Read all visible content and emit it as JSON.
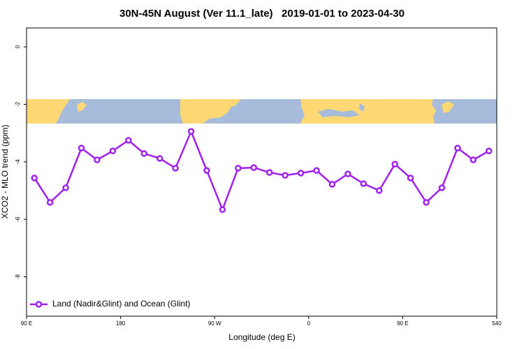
{
  "chart_data": {
    "type": "line",
    "title": "30N-45N August (Ver 11.1_late)   2019-01-01 to 2023-04-30",
    "x_label": "Longitude (deg E)",
    "y_label": "XCO2 - MLO trend (ppm)",
    "x": [
      97.5,
      112.5,
      127.5,
      142.5,
      157.5,
      172.5,
      187.5,
      202.5,
      217.5,
      232.5,
      247.5,
      262.5,
      277.5,
      292.5,
      307.5,
      322.5,
      337.5,
      352.5,
      367.5,
      382.5,
      397.5,
      412.5,
      427.5,
      442.5,
      457.5,
      472.5,
      487.5,
      502.5,
      517.5,
      532.5
    ],
    "series": [
      {
        "name": "Land (Nadir&Glint) and Ocean (Glint)",
        "color": "#a020f0",
        "values": [
          -4.56,
          -5.41,
          -4.9,
          -3.52,
          -3.93,
          -3.62,
          -3.25,
          -3.71,
          -3.88,
          -4.22,
          -2.94,
          -4.3,
          -5.66,
          -4.22,
          -4.2,
          -4.37,
          -4.47,
          -4.39,
          -4.3,
          -4.78,
          -4.42,
          -4.76,
          -5.0,
          -4.08,
          -4.56,
          -5.41,
          -4.9,
          -3.52,
          -3.93,
          -3.62
        ]
      }
    ],
    "xlim": [
      90,
      540
    ],
    "xticks": [
      {
        "value": 90,
        "label": "90 E"
      },
      180,
      {
        "value": 270,
        "label": "90 W"
      },
      {
        "value": 360,
        "label": "0"
      },
      {
        "value": 450,
        "label": "90 E"
      },
      540
    ],
    "ylim": [
      0.66,
      -9.37
    ],
    "yticks": [
      0,
      -2,
      -4,
      -6,
      -8
    ],
    "legend": "bottom-left"
  }
}
